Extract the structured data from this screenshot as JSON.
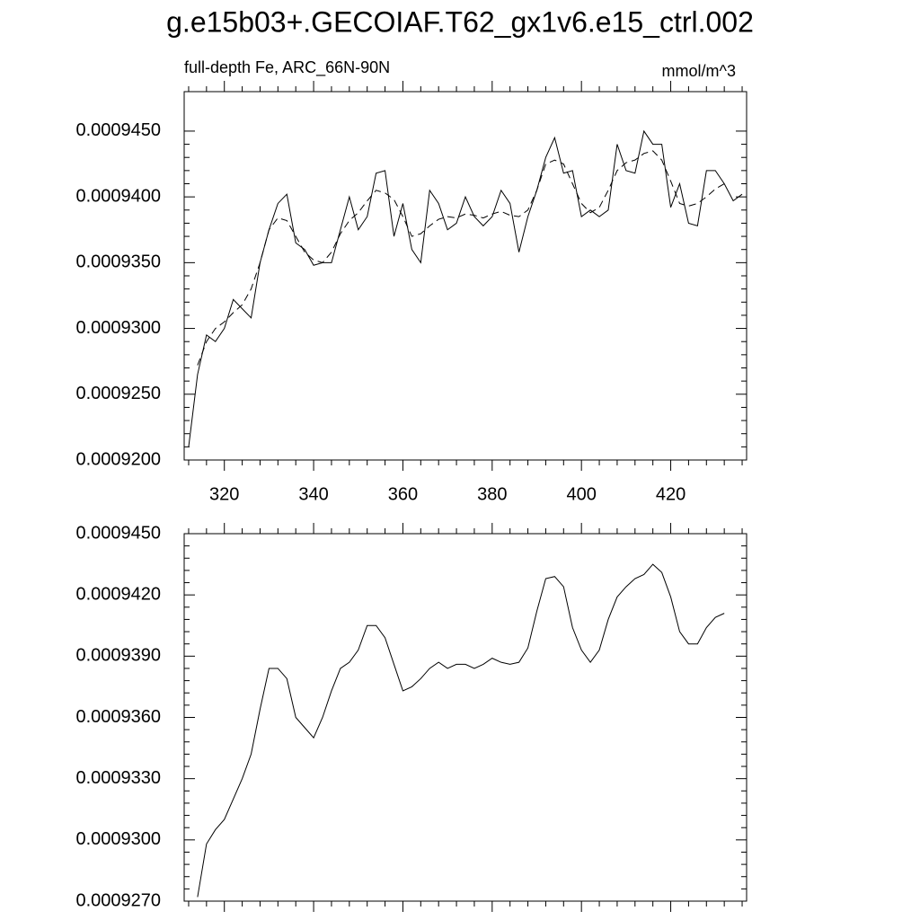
{
  "title": "g.e15b03+.GECOIAF.T62_gx1v6.e15_ctrl.002",
  "chart_data": [
    {
      "type": "line",
      "subtitle": "full-depth Fe, ARC_66N-90N",
      "units": "mmol/m^3",
      "x": [
        312,
        314,
        316,
        318,
        320,
        322,
        324,
        326,
        328,
        330,
        332,
        334,
        336,
        338,
        340,
        342,
        344,
        346,
        348,
        350,
        352,
        354,
        356,
        358,
        360,
        362,
        364,
        366,
        368,
        370,
        372,
        374,
        376,
        378,
        380,
        382,
        384,
        386,
        388,
        390,
        392,
        394,
        396,
        398,
        400,
        402,
        404,
        406,
        408,
        410,
        412,
        414,
        416,
        418,
        420,
        422,
        424,
        426,
        428,
        430,
        432,
        434,
        436
      ],
      "xlim": [
        311,
        437
      ],
      "xticks": [
        320,
        340,
        360,
        380,
        400,
        420
      ],
      "ylim": [
        0.00092,
        0.000948
      ],
      "yticks": [
        {
          "value": 0.00092,
          "label": "0.0009200"
        },
        {
          "value": 0.000925,
          "label": "0.0009250"
        },
        {
          "value": 0.00093,
          "label": "0.0009300"
        },
        {
          "value": 0.000935,
          "label": "0.0009350"
        },
        {
          "value": 0.00094,
          "label": "0.0009400"
        },
        {
          "value": 0.000945,
          "label": "0.0009450"
        }
      ],
      "series": [
        {
          "color": "#000000",
          "style": "solid",
          "values": [
            0.000921,
            0.0009265,
            0.0009295,
            0.000929,
            0.00093,
            0.0009322,
            0.0009315,
            0.0009308,
            0.000935,
            0.0009375,
            0.0009395,
            0.0009402,
            0.0009365,
            0.000936,
            0.0009348,
            0.000935,
            0.000935,
            0.0009375,
            0.00094,
            0.0009375,
            0.0009385,
            0.0009418,
            0.000942,
            0.000937,
            0.0009395,
            0.000936,
            0.000935,
            0.0009405,
            0.0009395,
            0.0009375,
            0.000938,
            0.00094,
            0.0009385,
            0.0009378,
            0.0009385,
            0.0009405,
            0.0009395,
            0.0009358,
            0.0009385,
            0.0009405,
            0.000943,
            0.0009445,
            0.0009418,
            0.000942,
            0.0009385,
            0.000939,
            0.0009385,
            0.000939,
            0.000944,
            0.000942,
            0.0009418,
            0.000945,
            0.000944,
            0.000944,
            0.0009392,
            0.000941,
            0.000938,
            0.0009378,
            0.000942,
            0.000942,
            0.000941,
            0.0009397,
            0.0009402
          ]
        },
        {
          "color": "#000000",
          "style": "dashed",
          "values": [
            null,
            0.0009272,
            0.000929,
            0.00093,
            0.0009305,
            0.0009312,
            0.0009318,
            0.000933,
            0.000935,
            0.0009375,
            0.0009384,
            0.0009382,
            0.000937,
            0.0009358,
            0.0009352,
            0.000935,
            0.0009358,
            0.0009372,
            0.0009382,
            0.0009388,
            0.0009397,
            0.0009405,
            0.0009403,
            0.0009398,
            0.0009385,
            0.000937,
            0.0009372,
            0.0009378,
            0.0009383,
            0.0009385,
            0.0009384,
            0.0009387,
            0.0009386,
            0.0009384,
            0.0009387,
            0.0009389,
            0.0009386,
            0.0009385,
            0.000939,
            0.0009405,
            0.0009425,
            0.0009428,
            0.0009425,
            0.000941,
            0.0009395,
            0.0009388,
            0.0009392,
            0.0009405,
            0.000942,
            0.0009426,
            0.0009428,
            0.0009433,
            0.0009435,
            0.0009428,
            0.0009412,
            0.0009395,
            0.0009393,
            0.0009395,
            0.00094,
            0.0009406,
            0.000941,
            null,
            null
          ]
        }
      ]
    },
    {
      "type": "line",
      "x": [
        312,
        314,
        316,
        318,
        320,
        322,
        324,
        326,
        328,
        330,
        332,
        334,
        336,
        338,
        340,
        342,
        344,
        346,
        348,
        350,
        352,
        354,
        356,
        358,
        360,
        362,
        364,
        366,
        368,
        370,
        372,
        374,
        376,
        378,
        380,
        382,
        384,
        386,
        388,
        390,
        392,
        394,
        396,
        398,
        400,
        402,
        404,
        406,
        408,
        410,
        412,
        414,
        416,
        418,
        420,
        422,
        424,
        426,
        428,
        430,
        432,
        434,
        436
      ],
      "xlim": [
        311,
        437
      ],
      "ylim": [
        0.000927,
        0.000945
      ],
      "yticks": [
        {
          "value": 0.000927,
          "label": "0.0009270"
        },
        {
          "value": 0.00093,
          "label": "0.0009300"
        },
        {
          "value": 0.000933,
          "label": "0.0009330"
        },
        {
          "value": 0.000936,
          "label": "0.0009360"
        },
        {
          "value": 0.000939,
          "label": "0.0009390"
        },
        {
          "value": 0.000942,
          "label": "0.0009420"
        },
        {
          "value": 0.000945,
          "label": "0.0009450"
        }
      ],
      "series": [
        {
          "color": "#000000",
          "style": "solid",
          "values": [
            null,
            0.0009272,
            0.0009298,
            0.0009305,
            0.000931,
            0.000932,
            0.000933,
            0.0009342,
            0.0009364,
            0.0009384,
            0.0009384,
            0.0009379,
            0.000936,
            0.0009355,
            0.000935,
            0.000936,
            0.0009373,
            0.0009384,
            0.0009387,
            0.0009393,
            0.0009405,
            0.0009405,
            0.0009399,
            0.0009386,
            0.0009373,
            0.0009375,
            0.0009379,
            0.0009384,
            0.0009387,
            0.0009384,
            0.0009386,
            0.0009386,
            0.0009384,
            0.0009386,
            0.0009389,
            0.0009387,
            0.0009386,
            0.0009387,
            0.0009394,
            0.0009412,
            0.0009428,
            0.0009429,
            0.0009424,
            0.0009404,
            0.0009393,
            0.0009387,
            0.0009393,
            0.0009408,
            0.0009419,
            0.0009424,
            0.0009428,
            0.000943,
            0.0009435,
            0.0009431,
            0.0009419,
            0.0009402,
            0.0009396,
            0.0009396,
            0.0009404,
            0.0009409,
            0.0009411,
            null,
            null
          ]
        }
      ]
    }
  ]
}
